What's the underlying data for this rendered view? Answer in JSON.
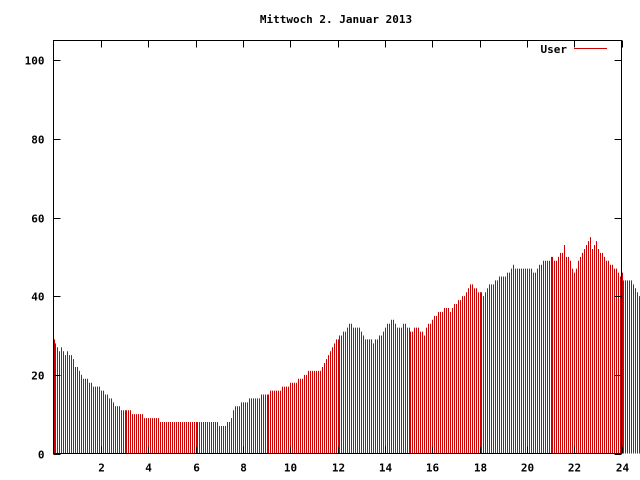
{
  "chart_data": {
    "type": "bar",
    "title": "Mittwoch 2. Januar 2013",
    "xlabel": "",
    "ylabel": "",
    "xlim": [
      0,
      24
    ],
    "ylim": [
      0,
      105
    ],
    "x_ticks": [
      2,
      4,
      6,
      8,
      10,
      12,
      14,
      16,
      18,
      20,
      22,
      24
    ],
    "y_ticks": [
      0,
      20,
      40,
      60,
      80,
      100
    ],
    "grid": false,
    "legend": "top-right",
    "series": [
      {
        "name": "User",
        "color": "#cc0000",
        "bar_interval_minutes": 5,
        "values": [
          29,
          28,
          27,
          26,
          27,
          26,
          25,
          26,
          25,
          25,
          24,
          22,
          22,
          21,
          20,
          19,
          19,
          19,
          18,
          18,
          17,
          17,
          17,
          17,
          16,
          16,
          15,
          15,
          14,
          14,
          13,
          12,
          12,
          12,
          11,
          11,
          11,
          11,
          11,
          11,
          10,
          10,
          10,
          10,
          10,
          10,
          9,
          9,
          9,
          9,
          9,
          9,
          9,
          9,
          8,
          8,
          8,
          8,
          8,
          8,
          8,
          8,
          8,
          8,
          8,
          8,
          8,
          8,
          8,
          8,
          8,
          8,
          8,
          8,
          8,
          8,
          8,
          8,
          8,
          8,
          8,
          8,
          8,
          8,
          7,
          7,
          7,
          7,
          8,
          8,
          9,
          11,
          12,
          12,
          12,
          13,
          13,
          13,
          13,
          14,
          14,
          14,
          14,
          14,
          14,
          15,
          15,
          15,
          15,
          15,
          16,
          16,
          16,
          16,
          16,
          16,
          17,
          17,
          17,
          17,
          18,
          18,
          18,
          18,
          19,
          19,
          19,
          20,
          20,
          21,
          21,
          21,
          21,
          21,
          21,
          21,
          22,
          23,
          24,
          25,
          26,
          27,
          28,
          29,
          29,
          30,
          30,
          31,
          31,
          32,
          33,
          33,
          32,
          32,
          32,
          32,
          31,
          30,
          29,
          29,
          29,
          29,
          28,
          29,
          29,
          30,
          30,
          31,
          32,
          33,
          33,
          34,
          34,
          33,
          32,
          32,
          32,
          33,
          33,
          32,
          32,
          31,
          31,
          32,
          32,
          32,
          31,
          31,
          30,
          32,
          33,
          33,
          34,
          35,
          35,
          36,
          36,
          36,
          37,
          37,
          37,
          36,
          37,
          38,
          38,
          39,
          39,
          40,
          40,
          41,
          42,
          43,
          43,
          42,
          42,
          41,
          41,
          41,
          40,
          41,
          42,
          43,
          43,
          43,
          44,
          44,
          45,
          45,
          45,
          45,
          46,
          46,
          47,
          48,
          47,
          47,
          47,
          47,
          47,
          47,
          47,
          47,
          47,
          46,
          46,
          47,
          48,
          48,
          49,
          49,
          49,
          49,
          50,
          50,
          49,
          49,
          50,
          51,
          51,
          53,
          50,
          50,
          49,
          47,
          46,
          47,
          49,
          50,
          51,
          52,
          53,
          54,
          55,
          52,
          53,
          54,
          52,
          51,
          51,
          50,
          49,
          49,
          48,
          48,
          47,
          47,
          46,
          45,
          46,
          44,
          44,
          44,
          44,
          44,
          43,
          42,
          41,
          40
        ]
      }
    ]
  }
}
